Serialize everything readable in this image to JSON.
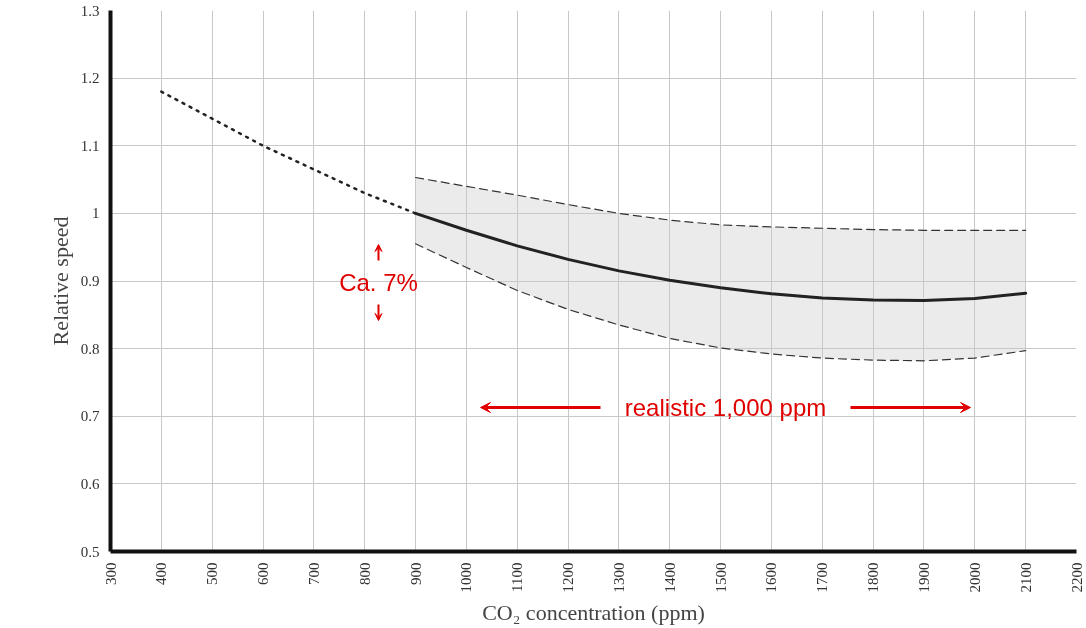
{
  "chart_data": {
    "type": "line",
    "xlabel": "CO₂ concentration (ppm)",
    "ylabel": "Relative speed",
    "xlim": [
      300,
      2200
    ],
    "xticks": [
      300,
      400,
      500,
      600,
      700,
      800,
      900,
      1000,
      1100,
      1200,
      1300,
      1400,
      1500,
      1600,
      1700,
      1800,
      1900,
      2000,
      2100,
      2200
    ],
    "ylim": [
      0.5,
      1.3
    ],
    "yticks": [
      0.5,
      0.6,
      0.7,
      0.8,
      0.9,
      1,
      1.1,
      1.2,
      1.3
    ],
    "grid": true,
    "series": [
      {
        "line_style": "dotted",
        "color": "#222222",
        "x": [
          400,
          500,
          600,
          700,
          800,
          900
        ],
        "values": [
          1.18,
          1.14,
          1.1,
          1.065,
          1.03,
          1.0
        ]
      },
      {
        "line_style": "solid",
        "color": "#222222",
        "x": [
          900,
          1000,
          1100,
          1200,
          1300,
          1400,
          1500,
          1600,
          1700,
          1800,
          1900,
          2000,
          2100
        ],
        "values": [
          1.0,
          0.975,
          0.952,
          0.932,
          0.915,
          0.901,
          0.89,
          0.881,
          0.875,
          0.872,
          0.871,
          0.874,
          0.882
        ],
        "lower": [
          0.955,
          0.92,
          0.886,
          0.858,
          0.835,
          0.815,
          0.801,
          0.792,
          0.786,
          0.783,
          0.782,
          0.786,
          0.797
        ],
        "upper": [
          1.053,
          1.04,
          1.027,
          1.013,
          1.0,
          0.99,
          0.983,
          0.98,
          0.978,
          0.976,
          0.975,
          0.975,
          0.975
        ]
      },
      {
        "line_style": "dashed",
        "color": "#333333",
        "x": [
          900,
          1000,
          1100,
          1200,
          1300,
          1400,
          1500,
          1600,
          1700,
          1800,
          1900,
          2000,
          2100
        ],
        "values": [
          1.053,
          1.04,
          1.027,
          1.013,
          1.0,
          0.99,
          0.983,
          0.98,
          0.978,
          0.976,
          0.975,
          0.975,
          0.975
        ]
      },
      {
        "line_style": "dashed",
        "color": "#333333",
        "x": [
          900,
          1000,
          1100,
          1200,
          1300,
          1400,
          1500,
          1600,
          1700,
          1800,
          1900,
          2000,
          2100
        ],
        "values": [
          0.955,
          0.92,
          0.886,
          0.858,
          0.835,
          0.815,
          0.801,
          0.792,
          0.786,
          0.783,
          0.782,
          0.786,
          0.797
        ]
      }
    ],
    "annotations": [
      "Ca. 7%",
      "realistic 1,000 ppm"
    ]
  }
}
